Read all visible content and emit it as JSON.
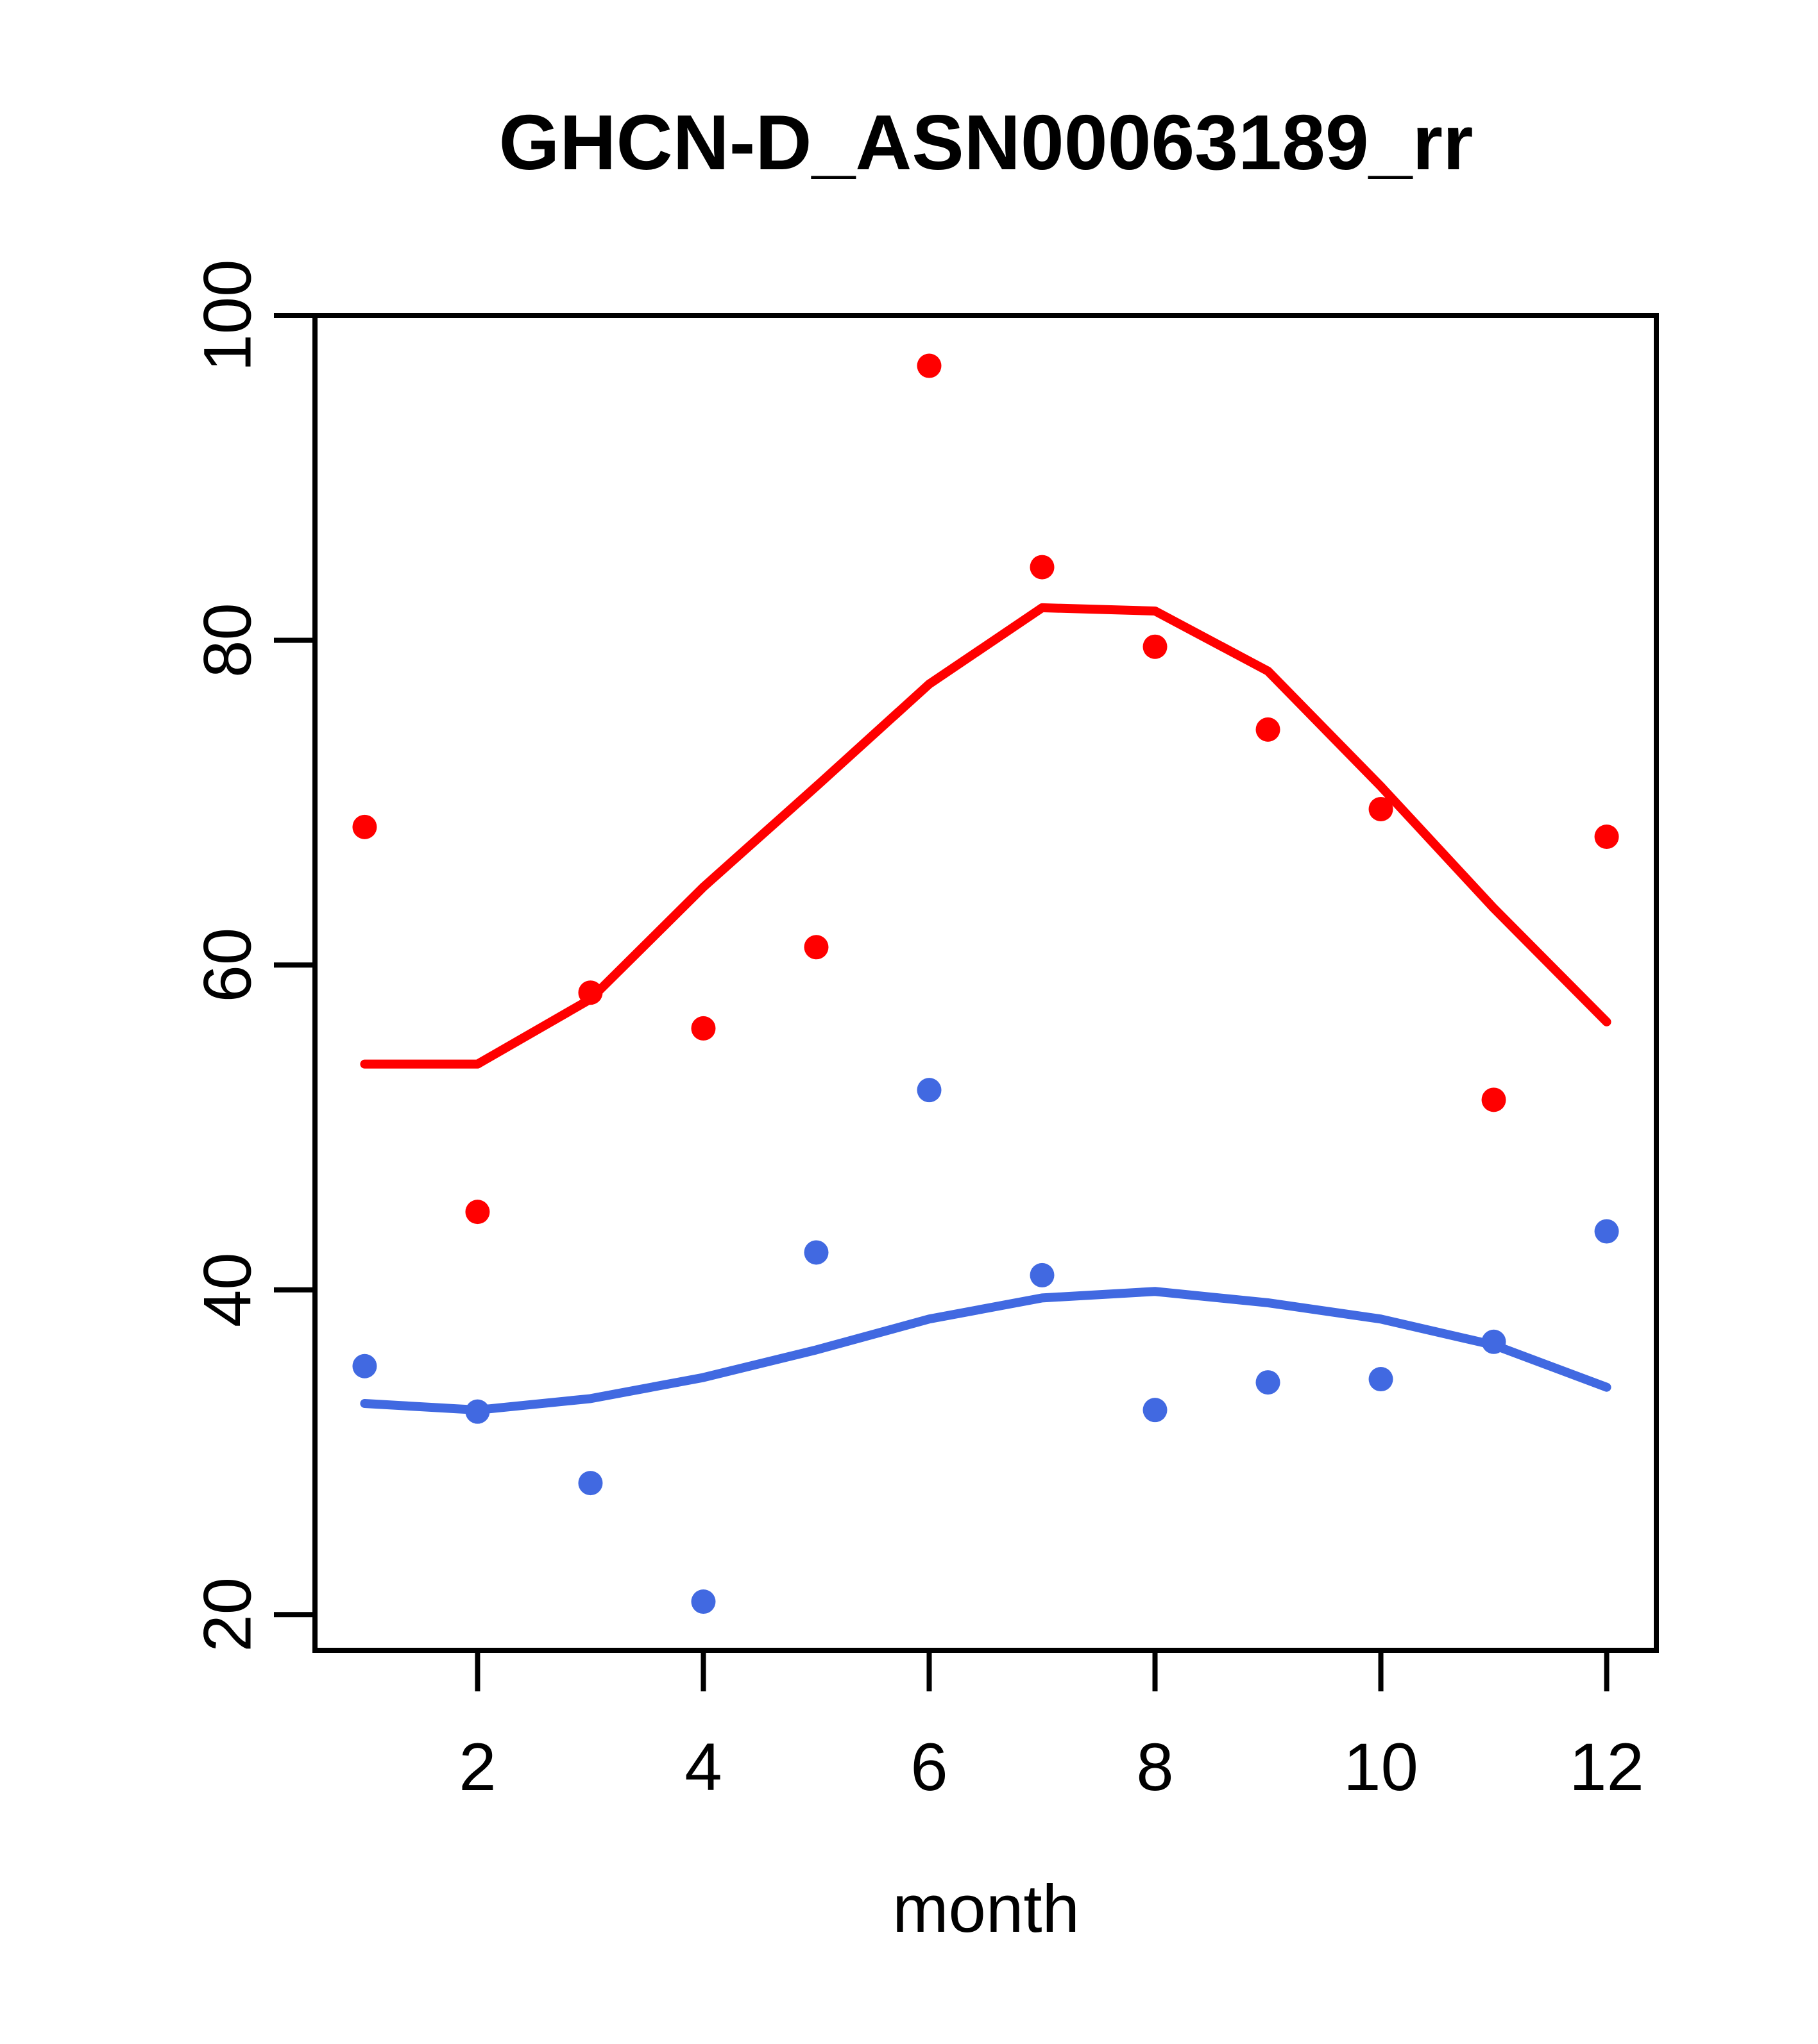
{
  "title": "GHCN-D_ASN00063189_rr",
  "axes": {
    "xlabel": "month",
    "x_ticks": [
      2,
      4,
      6,
      8,
      10,
      12
    ],
    "y_ticks": [
      20,
      40,
      60,
      80,
      100
    ],
    "xlim": [
      0.56,
      12.44
    ],
    "ylim": [
      17.8,
      100.0
    ]
  },
  "colors": {
    "red": "#FF0000",
    "blue": "#4169E1",
    "axis": "#000000",
    "background": "#FFFFFF"
  },
  "chart_data": {
    "type": "scatter",
    "title": "GHCN-D_ASN00063189_rr",
    "xlabel": "month",
    "ylabel": "",
    "x": [
      1,
      2,
      3,
      4,
      5,
      6,
      7,
      8,
      9,
      10,
      11,
      12
    ],
    "xlim": [
      0.56,
      12.44
    ],
    "ylim": [
      17.8,
      100.0
    ],
    "grid": false,
    "legend_position": "none",
    "series": [
      {
        "name": "red points (monthly values)",
        "kind": "points",
        "color_key": "red",
        "values": [
          68.5,
          44.8,
          58.3,
          56.1,
          61.1,
          96.9,
          84.5,
          79.6,
          74.5,
          69.6,
          51.7,
          67.9
        ]
      },
      {
        "name": "red smoothed line (loess fit)",
        "kind": "line",
        "color_key": "red",
        "values": [
          53.9,
          53.9,
          57.9,
          64.8,
          71.0,
          77.3,
          82.0,
          81.8,
          78.1,
          71.0,
          63.5,
          56.5
        ]
      },
      {
        "name": "blue points (monthly values)",
        "kind": "points",
        "color_key": "blue",
        "values": [
          35.3,
          32.5,
          28.1,
          20.8,
          42.3,
          52.3,
          40.9,
          32.6,
          34.3,
          34.5,
          36.8,
          43.6
        ]
      },
      {
        "name": "blue smoothed line (loess fit)",
        "kind": "line",
        "color_key": "blue",
        "values": [
          33.0,
          32.6,
          33.3,
          34.6,
          36.3,
          38.2,
          39.5,
          39.9,
          39.2,
          38.2,
          36.6,
          34.0
        ]
      }
    ]
  }
}
